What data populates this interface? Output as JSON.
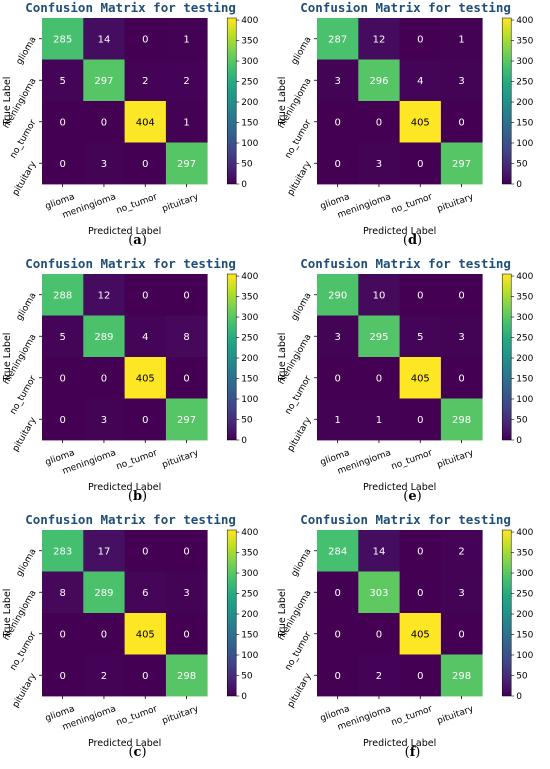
{
  "colorbar_ticks": [
    0,
    50,
    100,
    150,
    200,
    250,
    300,
    350,
    400
  ],
  "chart_data": [
    {
      "type": "heatmap",
      "panel_label": "a",
      "title": "Confusion Matrix for testing",
      "xlabel": "Predicted Label",
      "ylabel": "True Label",
      "x_categories": [
        "glioma",
        "meningioma",
        "no_tumor",
        "pituitary"
      ],
      "y_categories": [
        "glioma",
        "meningioma",
        "no_tumor",
        "pituitary"
      ],
      "values": [
        [
          285,
          14,
          0,
          1
        ],
        [
          5,
          297,
          2,
          2
        ],
        [
          0,
          0,
          404,
          1
        ],
        [
          0,
          3,
          0,
          297
        ]
      ],
      "colorscale": "viridis",
      "vmin": 0,
      "vmax": 405
    },
    {
      "type": "heatmap",
      "panel_label": "d",
      "title": "Confusion Matrix for testing",
      "xlabel": "Predicted Label",
      "ylabel": "True Label",
      "x_categories": [
        "glioma",
        "meningioma",
        "no_tumor",
        "pituitary"
      ],
      "y_categories": [
        "glioma",
        "meningioma",
        "no_tumor",
        "pituitary"
      ],
      "values": [
        [
          287,
          12,
          0,
          1
        ],
        [
          3,
          296,
          4,
          3
        ],
        [
          0,
          0,
          405,
          0
        ],
        [
          0,
          3,
          0,
          297
        ]
      ],
      "colorscale": "viridis",
      "vmin": 0,
      "vmax": 405
    },
    {
      "type": "heatmap",
      "panel_label": "b",
      "title": "Confusion Matrix for testing",
      "xlabel": "Predicted Label",
      "ylabel": "True Label",
      "x_categories": [
        "glioma",
        "meningioma",
        "no_tumor",
        "pituitary"
      ],
      "y_categories": [
        "glioma",
        "meningioma",
        "no_tumor",
        "pituitary"
      ],
      "values": [
        [
          288,
          12,
          0,
          0
        ],
        [
          5,
          289,
          4,
          8
        ],
        [
          0,
          0,
          405,
          0
        ],
        [
          0,
          3,
          0,
          297
        ]
      ],
      "colorscale": "viridis",
      "vmin": 0,
      "vmax": 405
    },
    {
      "type": "heatmap",
      "panel_label": "e",
      "title": "Confusion Matrix for testing",
      "xlabel": "Predicted Label",
      "ylabel": "True Label",
      "x_categories": [
        "glioma",
        "meningioma",
        "no_tumor",
        "pituitary"
      ],
      "y_categories": [
        "glioma",
        "meningioma",
        "no_tumor",
        "pituitary"
      ],
      "values": [
        [
          290,
          10,
          0,
          0
        ],
        [
          3,
          295,
          5,
          3
        ],
        [
          0,
          0,
          405,
          0
        ],
        [
          1,
          1,
          0,
          298
        ]
      ],
      "colorscale": "viridis",
      "vmin": 0,
      "vmax": 405
    },
    {
      "type": "heatmap",
      "panel_label": "c",
      "title": "Confusion Matrix for testing",
      "xlabel": "Predicted Label",
      "ylabel": "True Label",
      "x_categories": [
        "glioma",
        "meningioma",
        "no_tumor",
        "pituitary"
      ],
      "y_categories": [
        "glioma",
        "meningioma",
        "no_tumor",
        "pituitary"
      ],
      "values": [
        [
          283,
          17,
          0,
          0
        ],
        [
          8,
          289,
          6,
          3
        ],
        [
          0,
          0,
          405,
          0
        ],
        [
          0,
          2,
          0,
          298
        ]
      ],
      "colorscale": "viridis",
      "vmin": 0,
      "vmax": 405
    },
    {
      "type": "heatmap",
      "panel_label": "f",
      "title": "Confusion Matrix for testing",
      "xlabel": "Predicted Label",
      "ylabel": "True Label",
      "x_categories": [
        "glioma",
        "meningioma",
        "no_tumor",
        "pituitary"
      ],
      "y_categories": [
        "glioma",
        "meningioma",
        "no_tumor",
        "pituitary"
      ],
      "values": [
        [
          284,
          14,
          0,
          2
        ],
        [
          0,
          303,
          0,
          3
        ],
        [
          0,
          0,
          405,
          0
        ],
        [
          0,
          2,
          0,
          298
        ]
      ],
      "colorscale": "viridis",
      "vmin": 0,
      "vmax": 405
    }
  ]
}
